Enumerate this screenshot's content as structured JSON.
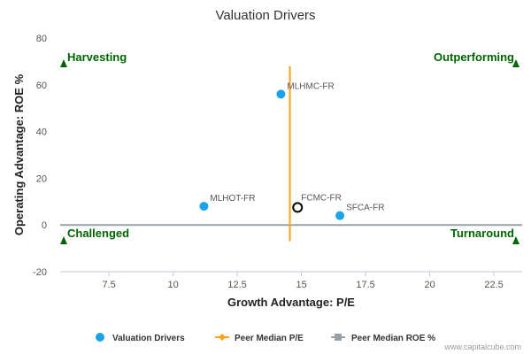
{
  "chart_data": {
    "type": "scatter",
    "title": "Valuation Drivers",
    "xlabel": "Growth Advantage: P/E",
    "ylabel": "Operating Advantage: ROE %",
    "xlim": [
      5.6,
      23.6
    ],
    "ylim": [
      -20,
      80
    ],
    "x_ticks": [
      "7.5",
      "10",
      "12.5",
      "15",
      "17.5",
      "20",
      "22.5"
    ],
    "y_ticks": [
      "-20",
      "0",
      "20",
      "40",
      "60",
      "80"
    ],
    "grid": false,
    "legend_position": "bottom",
    "quadrants": {
      "top_left": "Harvesting",
      "top_right": "Outperforming",
      "bottom_left": "Challenged",
      "bottom_right": "Turnaround"
    },
    "series": [
      {
        "name": "Valuation Drivers",
        "color": "#1aa3e8",
        "points": [
          {
            "label": "MLHMC-FR",
            "x": 14.2,
            "y": 56
          },
          {
            "label": "MLHOT-FR",
            "x": 11.2,
            "y": 8
          },
          {
            "label": "SFCA-FR",
            "x": 16.5,
            "y": 4
          }
        ]
      }
    ],
    "highlighted_point": {
      "label": "FCMC-FR",
      "x": 14.85,
      "y": 7.5
    },
    "peer_median_pe": {
      "name": "Peer Median P/E",
      "x": 14.55,
      "color": "#f7a21b"
    },
    "peer_median_roe": {
      "name": "Peer Median ROE %",
      "y": 0,
      "color": "#9aa0a8"
    }
  },
  "legend": {
    "items": [
      "Valuation Drivers",
      "Peer Median P/E",
      "Peer Median ROE %"
    ]
  },
  "credit": "www.capitalcube.com"
}
